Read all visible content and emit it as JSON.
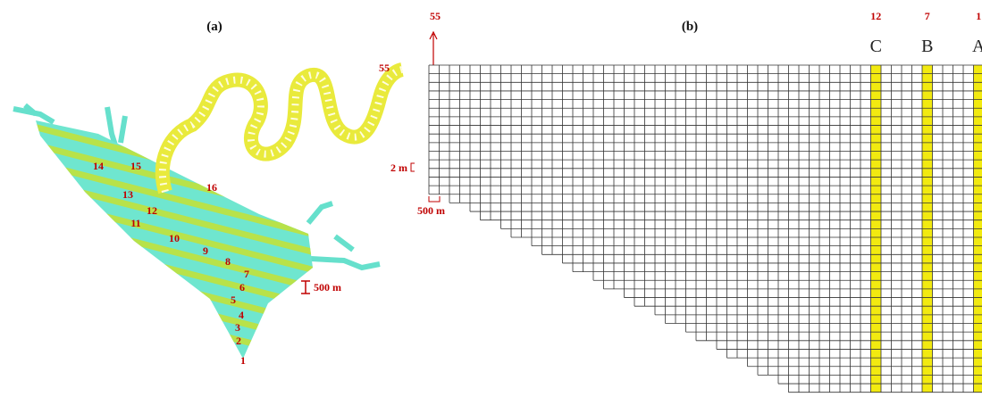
{
  "panel_a": {
    "title": "(a)",
    "segment_labels": [
      "1",
      "2",
      "3",
      "4",
      "5",
      "6",
      "7",
      "8",
      "9",
      "10",
      "11",
      "12",
      "13",
      "14",
      "15",
      "16"
    ],
    "end_label": "55",
    "scale_label": "500 m"
  },
  "panel_b": {
    "title": "(b)",
    "end_label": "55",
    "vertical_scale": "2 m",
    "horizontal_scale": "500 m",
    "sections": [
      {
        "segment": "12",
        "name": "C"
      },
      {
        "segment": "7",
        "name": "B"
      },
      {
        "segment": "1",
        "name": "A"
      }
    ]
  }
}
